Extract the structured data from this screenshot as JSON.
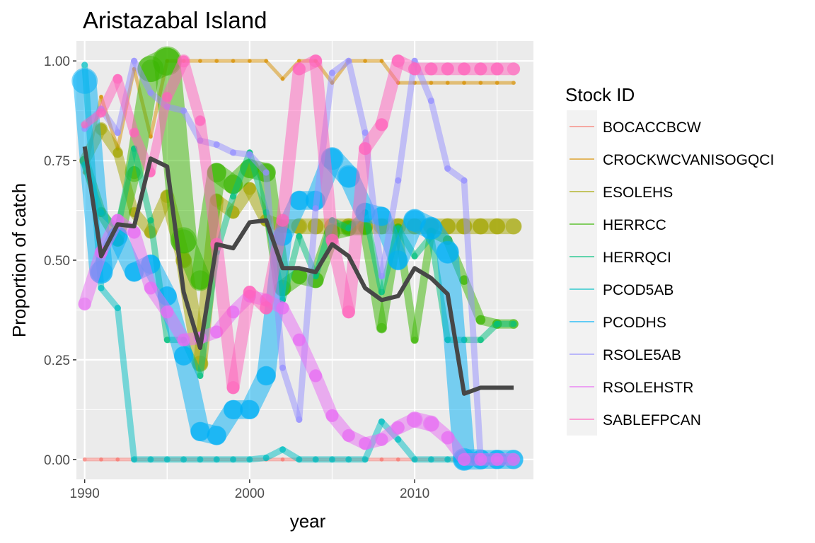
{
  "chart_data": {
    "type": "line",
    "title": "Aristazabal Island",
    "xlabel": "year",
    "ylabel": "Proportion of catch",
    "xlim": [
      1989.5,
      2017.2
    ],
    "ylim": [
      -0.05,
      1.05
    ],
    "x_ticks": [
      1990,
      2000,
      2010
    ],
    "x_tick_labels": [
      "1990",
      "2000",
      "2010"
    ],
    "y_ticks": [
      0,
      0.25,
      0.5,
      0.75,
      1
    ],
    "y_tick_labels": [
      "0.00",
      "0.25",
      "0.50",
      "0.75",
      "1.00"
    ],
    "grid": true,
    "legend": {
      "title": "Stock ID",
      "position": "right"
    },
    "series": [
      {
        "name": "BOCACCBCW",
        "color": "#F8766D",
        "x": [
          1990,
          1991,
          1992,
          1993,
          1994,
          1995,
          1996,
          1997,
          1998,
          1999,
          2000,
          2001,
          2002,
          2003,
          2004,
          2005,
          2006,
          2007,
          2008,
          2009,
          2010,
          2011,
          2012,
          2013,
          2014,
          2015,
          2016
        ],
        "y": [
          0,
          0,
          0,
          0,
          0,
          0,
          0,
          0,
          0,
          0,
          0,
          0,
          0,
          0,
          0,
          0,
          0,
          0,
          0,
          0,
          0,
          0,
          0,
          0,
          0,
          0,
          0
        ],
        "size": [
          1,
          1,
          1,
          1,
          1,
          1,
          1,
          1,
          1,
          1,
          1,
          1,
          1,
          1,
          1,
          1,
          1,
          1,
          1,
          1,
          1,
          1,
          1,
          1,
          1,
          1,
          1
        ]
      },
      {
        "name": "CROCKWCVANISOGQCI",
        "color": "#D89000",
        "x": [
          1990,
          1991,
          1992,
          1993,
          1994,
          1995,
          1996,
          1997,
          1998,
          1999,
          2000,
          2001,
          2002,
          2003,
          2004,
          2005,
          2006,
          2007,
          2008,
          2009,
          2010,
          2011,
          2012,
          2013,
          2014,
          2015,
          2016
        ],
        "y": [
          0.72,
          0.91,
          0.78,
          0.98,
          0.81,
          1.0,
          1.0,
          1.0,
          1.0,
          1.0,
          1.0,
          1.0,
          0.955,
          1.0,
          1.0,
          0.945,
          1.0,
          1.0,
          1.0,
          0.945,
          0.945,
          0.945,
          0.945,
          0.945,
          0.945,
          0.945,
          0.945
        ],
        "size": [
          1,
          1,
          1,
          1,
          1,
          1,
          1,
          1,
          1,
          1,
          1,
          1,
          1,
          1,
          1,
          1,
          1,
          1,
          1,
          1,
          1,
          1,
          1,
          1,
          1,
          1,
          1
        ]
      },
      {
        "name": "ESOLEHS",
        "color": "#A3A500",
        "x": [
          1990,
          1991,
          1992,
          1993,
          1994,
          1995,
          1996,
          1997,
          1998,
          1999,
          2000,
          2001,
          2002,
          2003,
          2004,
          2005,
          2006,
          2007,
          2008,
          2009,
          2010,
          2011,
          2012,
          2013,
          2014,
          2015,
          2016
        ],
        "y": [
          0.75,
          0.83,
          0.77,
          0.62,
          0.57,
          0.66,
          0.5,
          0.24,
          0.65,
          0.62,
          0.68,
          0.6,
          0.585,
          0.585,
          0.585,
          0.585,
          0.585,
          0.585,
          0.585,
          0.585,
          0.585,
          0.585,
          0.585,
          0.585,
          0.585,
          0.585,
          0.585
        ],
        "size": [
          3,
          4,
          3,
          3,
          4,
          4,
          5,
          5,
          4,
          4,
          4,
          4,
          4,
          5,
          5,
          5,
          5,
          5,
          5,
          5,
          5,
          5,
          5,
          5,
          5,
          5,
          5
        ]
      },
      {
        "name": "HERRCC",
        "color": "#39B600",
        "x": [
          1990,
          1991,
          1992,
          1993,
          1994,
          1995,
          1996,
          1997,
          1998,
          1999,
          2000,
          2001,
          2002,
          2003,
          2004,
          2005,
          2006,
          2007,
          2008,
          2009,
          2010,
          2011,
          2012,
          2013,
          2014,
          2015,
          2016
        ],
        "y": [
          0.75,
          0.62,
          0.55,
          0.72,
          0.98,
          1.0,
          0.55,
          0.45,
          0.72,
          0.69,
          0.73,
          0.72,
          0.43,
          0.46,
          0.45,
          0.57,
          0.58,
          0.58,
          0.33,
          0.58,
          0.3,
          0.57,
          0.55,
          0.45,
          0.35,
          0.34,
          0.34
        ],
        "size": [
          3,
          3,
          4,
          4,
          8,
          9,
          8,
          6,
          6,
          6,
          6,
          6,
          5,
          5,
          5,
          5,
          5,
          4,
          3,
          3,
          2,
          3,
          3,
          3,
          3,
          3,
          3
        ]
      },
      {
        "name": "HERRQCI",
        "color": "#00BF7D",
        "x": [
          1990,
          1991,
          1992,
          1993,
          1994,
          1995,
          1996,
          1997,
          1998,
          1999,
          2000,
          2001,
          2002,
          2003,
          2004,
          2005,
          2006,
          2007,
          2008,
          2009,
          2010,
          2011,
          2012,
          2013,
          2014,
          2015,
          2016
        ],
        "y": [
          0.74,
          0.62,
          0.58,
          0.78,
          0.6,
          0.3,
          0.3,
          0.21,
          0.52,
          0.66,
          0.77,
          0.62,
          0.4,
          0.56,
          0.46,
          0.6,
          0.58,
          0.62,
          0.42,
          0.58,
          0.51,
          0.56,
          0.3,
          0.3,
          0.3,
          0.34,
          0.34
        ],
        "size": [
          2,
          2,
          2,
          2,
          2,
          2,
          2,
          2,
          2,
          2,
          2,
          2,
          2,
          2,
          2,
          2,
          2,
          2,
          2,
          2,
          2,
          2,
          2,
          2,
          2,
          2,
          2
        ]
      },
      {
        "name": "PCOD5AB",
        "color": "#00BFC4",
        "x": [
          1990,
          1991,
          1992,
          1993,
          1994,
          1995,
          1996,
          1997,
          1998,
          1999,
          2000,
          2001,
          2002,
          2003,
          2004,
          2005,
          2006,
          2007,
          2008,
          2009,
          2010,
          2011,
          2012,
          2013,
          2014,
          2015,
          2016
        ],
        "y": [
          0.99,
          0.43,
          0.38,
          0,
          0,
          0,
          0,
          0,
          0,
          0,
          0,
          0.004,
          0.025,
          0,
          0,
          0,
          0,
          0,
          0.095,
          0.05,
          0,
          0,
          0,
          0,
          0,
          0,
          0
        ],
        "size": [
          2,
          2,
          2,
          2,
          2,
          2,
          2,
          2,
          2,
          2,
          2,
          2,
          2,
          2,
          2,
          2,
          2,
          2,
          2,
          2,
          2,
          2,
          2,
          2,
          2,
          2,
          2
        ]
      },
      {
        "name": "PCODHS",
        "color": "#00B0F6",
        "x": [
          1990,
          1991,
          1992,
          1993,
          1994,
          1995,
          1996,
          1997,
          1998,
          1999,
          2000,
          2001,
          2002,
          2003,
          2004,
          2005,
          2006,
          2007,
          2008,
          2009,
          2010,
          2011,
          2012,
          2013,
          2014,
          2015,
          2016
        ],
        "y": [
          0.95,
          0.47,
          0.56,
          0.47,
          0.49,
          0.41,
          0.26,
          0.07,
          0.06,
          0.125,
          0.125,
          0.21,
          0.56,
          0.65,
          0.65,
          0.755,
          0.71,
          0.62,
          0.61,
          0.5,
          0.6,
          0.58,
          0.52,
          0,
          0,
          0,
          0
        ],
        "size": [
          8,
          7,
          6,
          6,
          6,
          6,
          6,
          6,
          6,
          6,
          6,
          6,
          6,
          6,
          6,
          7,
          7,
          6,
          6,
          6,
          7,
          7,
          7,
          7,
          6,
          6,
          6
        ]
      },
      {
        "name": "RSOLE5AB",
        "color": "#9590FF",
        "x": [
          1990,
          1991,
          1992,
          1993,
          1994,
          1995,
          1996,
          1997,
          1998,
          1999,
          2000,
          2001,
          2002,
          2003,
          2004,
          2005,
          2006,
          2007,
          2008,
          2009,
          2010,
          2011,
          2012,
          2013,
          2014,
          2015,
          2016
        ],
        "y": [
          0.83,
          0.88,
          0.82,
          1.0,
          0.92,
          0.885,
          0.875,
          0.8,
          0.79,
          0.77,
          0.765,
          0.72,
          0.23,
          0.1,
          0.63,
          0.97,
          1.0,
          0.82,
          0.46,
          0.7,
          1.0,
          0.9,
          0.73,
          0.7,
          0,
          0,
          0
        ],
        "size": [
          2,
          2,
          2,
          2,
          2,
          2,
          2,
          2,
          2,
          2,
          2,
          2,
          2,
          2,
          2,
          2,
          2,
          2,
          2,
          2,
          2,
          2,
          2,
          2,
          2,
          2,
          2
        ]
      },
      {
        "name": "RSOLEHSTR",
        "color": "#E76BF3",
        "x": [
          1990,
          1991,
          1992,
          1993,
          1994,
          1995,
          1996,
          1997,
          1998,
          1999,
          2000,
          2001,
          2002,
          2003,
          2004,
          2005,
          2006,
          2007,
          2008,
          2009,
          2010,
          2011,
          2012,
          2013,
          2014,
          2015,
          2016
        ],
        "y": [
          0.39,
          0.52,
          0.6,
          0.57,
          0.43,
          0.37,
          0.3,
          0.305,
          0.32,
          0.37,
          0.41,
          0.4,
          0.38,
          0.3,
          0.21,
          0.11,
          0.06,
          0.04,
          0.05,
          0.08,
          0.1,
          0.09,
          0.055,
          0,
          0,
          0,
          0
        ],
        "size": [
          4,
          4,
          4,
          4,
          4,
          4,
          4,
          4,
          4,
          4,
          4,
          4,
          4,
          4,
          4,
          4,
          4,
          4,
          4,
          4,
          5,
          5,
          4,
          4,
          4,
          4,
          4
        ]
      },
      {
        "name": "SABLEFPCAN",
        "color": "#FF62BC",
        "x": [
          1990,
          1991,
          1992,
          1993,
          1994,
          1995,
          1996,
          1997,
          1998,
          1999,
          2000,
          2001,
          2002,
          2003,
          2004,
          2005,
          2006,
          2007,
          2008,
          2009,
          2010,
          2011,
          2012,
          2013,
          2014,
          2015,
          2016
        ],
        "y": [
          0.84,
          0.87,
          0.955,
          0.82,
          0.72,
          0.91,
          1.0,
          0.85,
          0.54,
          0.18,
          0.42,
          0.38,
          0.6,
          0.98,
          1.0,
          0.55,
          0.37,
          0.78,
          0.84,
          1.0,
          0.98,
          0.98,
          0.98,
          0.98,
          0.98,
          0.98,
          0.98
        ],
        "size": [
          2,
          3,
          3,
          3,
          3,
          3,
          4,
          3,
          4,
          4,
          4,
          4,
          4,
          4,
          4,
          4,
          4,
          4,
          4,
          4,
          4,
          4,
          4,
          4,
          4,
          4,
          4
        ]
      }
    ],
    "aggregate_line": {
      "color": "#474747",
      "x": [
        1990,
        1991,
        1992,
        1993,
        1994,
        1995,
        1996,
        1997,
        1998,
        1999,
        2000,
        2001,
        2002,
        2003,
        2004,
        2005,
        2006,
        2007,
        2008,
        2009,
        2010,
        2011,
        2012,
        2013,
        2014,
        2015,
        2016
      ],
      "y": [
        0.785,
        0.51,
        0.59,
        0.585,
        0.755,
        0.735,
        0.42,
        0.28,
        0.54,
        0.53,
        0.595,
        0.6,
        0.48,
        0.48,
        0.47,
        0.54,
        0.51,
        0.43,
        0.4,
        0.41,
        0.48,
        0.455,
        0.415,
        0.165,
        0.18,
        0.18,
        0.18
      ]
    }
  }
}
